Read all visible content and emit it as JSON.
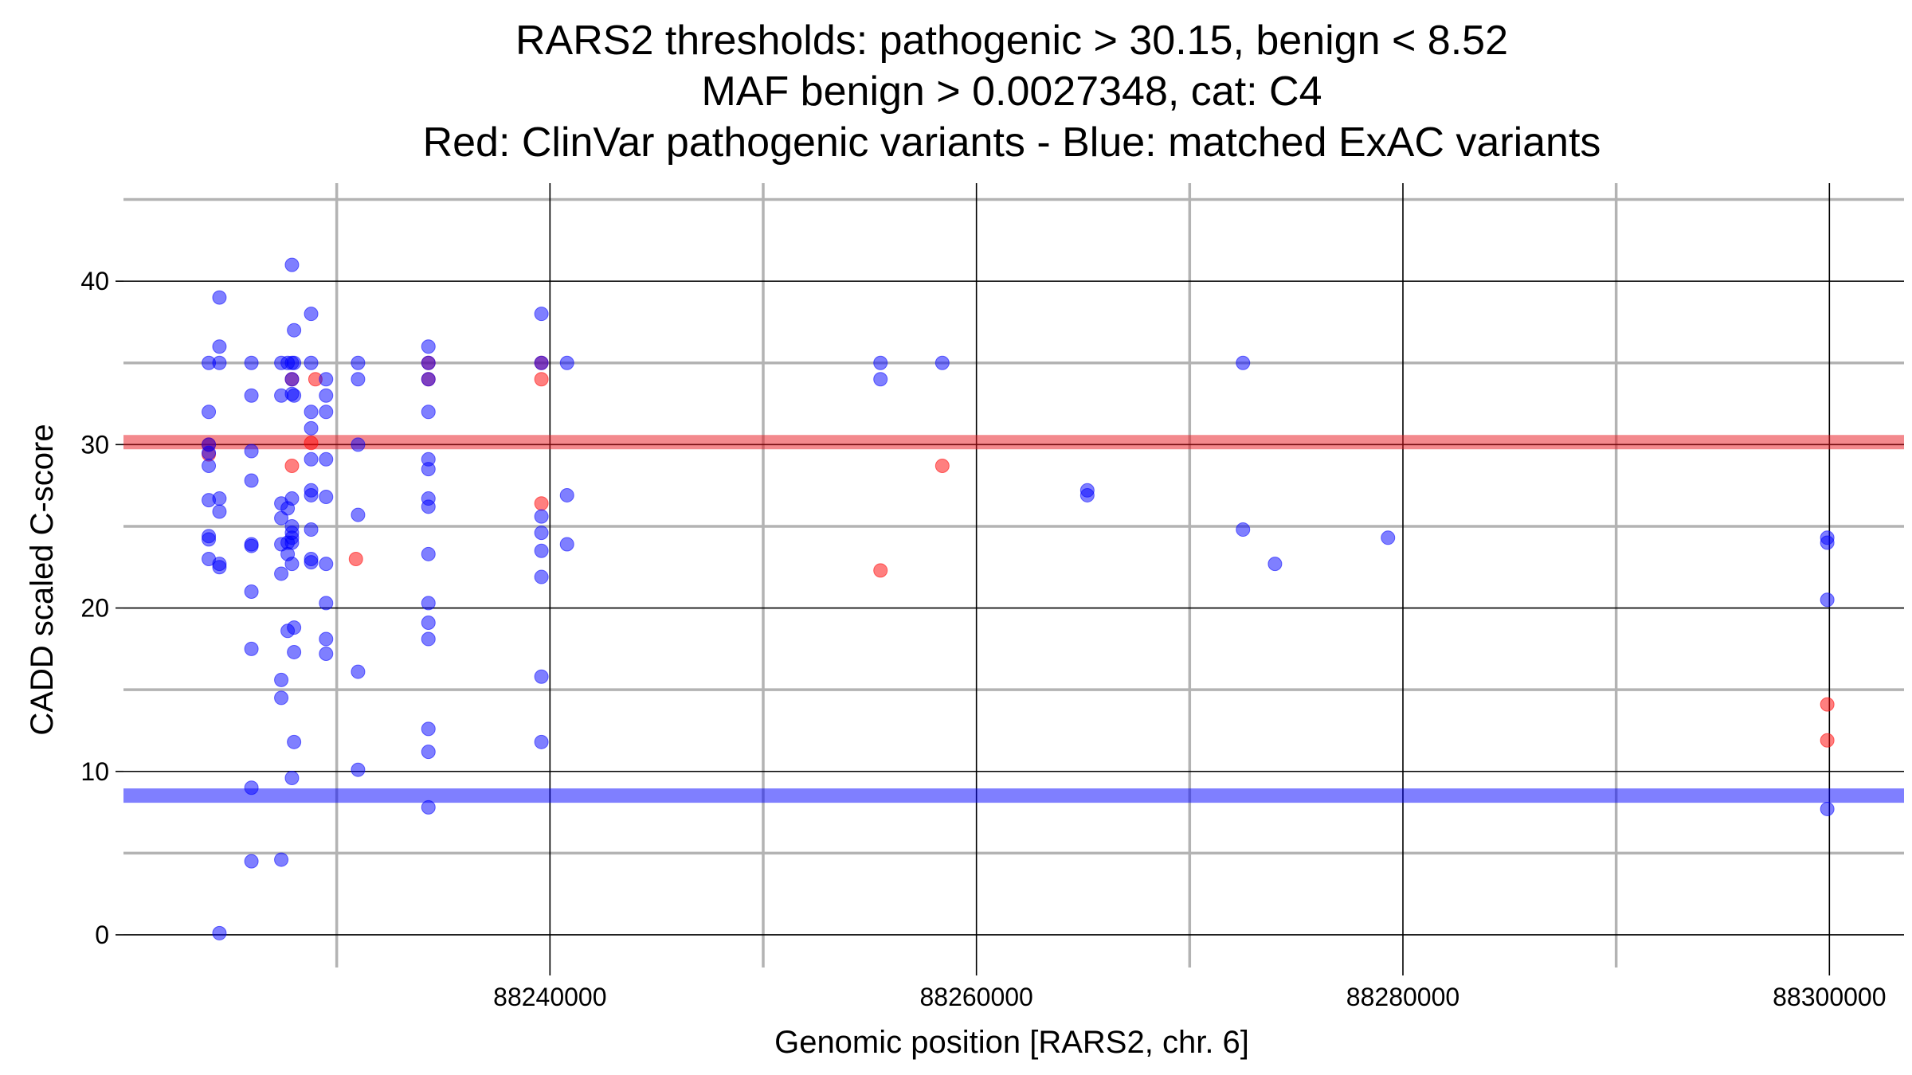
{
  "chart_data": {
    "type": "scatter",
    "title_lines": [
      "RARS2 thresholds: pathogenic > 30.15, benign < 8.52",
      "MAF benign > 0.0027348, cat: C4",
      "Red: ClinVar pathogenic variants - Blue: matched ExAC variants"
    ],
    "xlabel": "Genomic position [RARS2, chr. 6]",
    "ylabel": "CADD scaled C-score",
    "xlim": [
      88220000,
      88303500
    ],
    "ylim": [
      -2,
      46
    ],
    "x_major_ticks": [
      88230000,
      88250000,
      88270000,
      88290000
    ],
    "x_minor_ticks": [
      88240000,
      88260000,
      88280000,
      88300000
    ],
    "x_tick_labels": [
      {
        "value": 88240000,
        "label": "88240000"
      },
      {
        "value": 88260000,
        "label": "88260000"
      },
      {
        "value": 88280000,
        "label": "88280000"
      },
      {
        "value": 88300000,
        "label": "88300000"
      }
    ],
    "y_major_ticks": [
      5,
      15,
      25,
      35,
      45
    ],
    "y_minor_ticks": [
      0,
      10,
      20,
      30,
      40
    ],
    "y_tick_labels": [
      {
        "value": 0,
        "label": "0"
      },
      {
        "value": 10,
        "label": "10"
      },
      {
        "value": 20,
        "label": "20"
      },
      {
        "value": 30,
        "label": "30"
      },
      {
        "value": 40,
        "label": "40"
      }
    ],
    "grid": true,
    "thresholds": [
      {
        "name": "pathogenic",
        "value": 30.15,
        "color": "#e8141c"
      },
      {
        "name": "benign",
        "value": 8.52,
        "color": "#0000ff"
      }
    ],
    "series": [
      {
        "name": "ClinVar pathogenic variants",
        "color": "#ff0000",
        "points": [
          [
            88224000,
            30.0
          ],
          [
            88224000,
            29.4
          ],
          [
            88227900,
            34.0
          ],
          [
            88227900,
            28.7
          ],
          [
            88228800,
            30.1
          ],
          [
            88229000,
            34.0
          ],
          [
            88230900,
            23.0
          ],
          [
            88234300,
            35.0
          ],
          [
            88234300,
            34.0
          ],
          [
            88239600,
            35.0
          ],
          [
            88239600,
            34.0
          ],
          [
            88239600,
            26.4
          ],
          [
            88255500,
            22.3
          ],
          [
            88258400,
            28.7
          ],
          [
            88299900,
            14.1
          ],
          [
            88299900,
            11.9
          ]
        ]
      },
      {
        "name": "matched ExAC variants",
        "color": "#0000ff",
        "points": [
          [
            88224000,
            35.0
          ],
          [
            88224000,
            32.0
          ],
          [
            88224000,
            30.0
          ],
          [
            88224000,
            29.5
          ],
          [
            88224000,
            28.7
          ],
          [
            88224000,
            26.6
          ],
          [
            88224000,
            24.4
          ],
          [
            88224000,
            24.2
          ],
          [
            88224000,
            23.0
          ],
          [
            88224500,
            39.0
          ],
          [
            88224500,
            36.0
          ],
          [
            88224500,
            35.0
          ],
          [
            88224500,
            26.7
          ],
          [
            88224500,
            25.9
          ],
          [
            88224500,
            22.7
          ],
          [
            88224500,
            22.5
          ],
          [
            88224500,
            0.1
          ],
          [
            88226000,
            35.0
          ],
          [
            88226000,
            33.0
          ],
          [
            88226000,
            29.6
          ],
          [
            88226000,
            27.8
          ],
          [
            88226000,
            23.9
          ],
          [
            88226000,
            23.8
          ],
          [
            88226000,
            21.0
          ],
          [
            88226000,
            17.5
          ],
          [
            88226000,
            9.0
          ],
          [
            88226000,
            4.5
          ],
          [
            88227400,
            35.0
          ],
          [
            88227400,
            33.0
          ],
          [
            88227400,
            26.4
          ],
          [
            88227400,
            25.5
          ],
          [
            88227400,
            23.9
          ],
          [
            88227400,
            22.1
          ],
          [
            88227400,
            15.6
          ],
          [
            88227400,
            14.5
          ],
          [
            88227400,
            4.6
          ],
          [
            88227700,
            35.0
          ],
          [
            88227700,
            26.1
          ],
          [
            88227700,
            24.0
          ],
          [
            88227700,
            23.3
          ],
          [
            88227700,
            18.6
          ],
          [
            88227900,
            41.0
          ],
          [
            88227900,
            35.0
          ],
          [
            88227900,
            34.0
          ],
          [
            88227900,
            33.1
          ],
          [
            88227900,
            26.7
          ],
          [
            88227900,
            25.0
          ],
          [
            88227900,
            24.6
          ],
          [
            88227900,
            24.3
          ],
          [
            88227900,
            24.0
          ],
          [
            88227900,
            22.7
          ],
          [
            88227900,
            9.6
          ],
          [
            88228000,
            37.0
          ],
          [
            88228000,
            35.0
          ],
          [
            88228000,
            33.0
          ],
          [
            88228000,
            18.8
          ],
          [
            88228000,
            17.3
          ],
          [
            88228000,
            11.8
          ],
          [
            88228800,
            38.0
          ],
          [
            88228800,
            35.0
          ],
          [
            88228800,
            32.0
          ],
          [
            88228800,
            31.0
          ],
          [
            88228800,
            29.1
          ],
          [
            88228800,
            27.2
          ],
          [
            88228800,
            26.9
          ],
          [
            88228800,
            24.8
          ],
          [
            88228800,
            23.0
          ],
          [
            88228800,
            22.8
          ],
          [
            88229500,
            34.0
          ],
          [
            88229500,
            33.0
          ],
          [
            88229500,
            32.0
          ],
          [
            88229500,
            29.1
          ],
          [
            88229500,
            26.8
          ],
          [
            88229500,
            22.7
          ],
          [
            88229500,
            20.3
          ],
          [
            88229500,
            18.1
          ],
          [
            88229500,
            17.2
          ],
          [
            88231000,
            35.0
          ],
          [
            88231000,
            34.0
          ],
          [
            88231000,
            30.0
          ],
          [
            88231000,
            25.7
          ],
          [
            88231000,
            16.1
          ],
          [
            88231000,
            10.1
          ],
          [
            88234300,
            36.0
          ],
          [
            88234300,
            35.0
          ],
          [
            88234300,
            34.0
          ],
          [
            88234300,
            32.0
          ],
          [
            88234300,
            29.1
          ],
          [
            88234300,
            28.5
          ],
          [
            88234300,
            26.7
          ],
          [
            88234300,
            26.2
          ],
          [
            88234300,
            23.3
          ],
          [
            88234300,
            20.3
          ],
          [
            88234300,
            19.1
          ],
          [
            88234300,
            18.1
          ],
          [
            88234300,
            12.6
          ],
          [
            88234300,
            11.2
          ],
          [
            88234300,
            7.8
          ],
          [
            88239600,
            38.0
          ],
          [
            88239600,
            35.0
          ],
          [
            88239600,
            25.6
          ],
          [
            88239600,
            24.6
          ],
          [
            88239600,
            23.5
          ],
          [
            88239600,
            21.9
          ],
          [
            88239600,
            15.8
          ],
          [
            88239600,
            11.8
          ],
          [
            88240800,
            35.0
          ],
          [
            88240800,
            26.9
          ],
          [
            88240800,
            23.9
          ],
          [
            88255500,
            35.0
          ],
          [
            88255500,
            34.0
          ],
          [
            88258400,
            35.0
          ],
          [
            88265200,
            27.2
          ],
          [
            88265200,
            26.9
          ],
          [
            88272500,
            35.0
          ],
          [
            88272500,
            24.8
          ],
          [
            88274000,
            22.7
          ],
          [
            88279300,
            24.3
          ],
          [
            88299900,
            24.3
          ],
          [
            88299900,
            24.0
          ],
          [
            88299900,
            20.5
          ],
          [
            88299900,
            7.7
          ]
        ]
      }
    ]
  }
}
